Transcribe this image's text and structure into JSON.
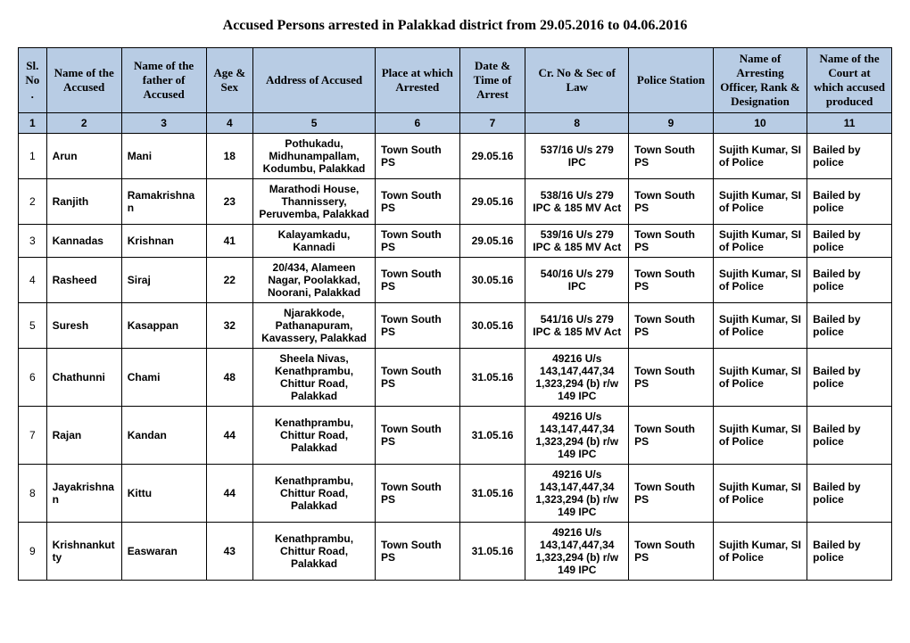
{
  "title": "Accused Persons arrested in   Palakkad  district from   29.05.2016 to 04.06.2016",
  "headers": {
    "sl": "Sl. No.",
    "name": "Name of the Accused",
    "father": "Name of the father of Accused",
    "age": "Age & Sex",
    "addr": "Address of Accused",
    "place": "Place at which Arrested",
    "date": "Date & Time of Arrest",
    "crno": "Cr. No & Sec of Law",
    "station": "Police Station",
    "officer": "Name of Arresting Officer, Rank & Designation",
    "court": "Name of the Court at which accused produced"
  },
  "colnums": [
    "1",
    "2",
    "3",
    "4",
    "5",
    "6",
    "7",
    "8",
    "9",
    "10",
    "11"
  ],
  "rows": [
    {
      "sl": "1",
      "name": "Arun",
      "father": "Mani",
      "age": "18",
      "addr": "Pothukadu, Midhunampallam, Kodumbu, Palakkad",
      "place": "Town South PS",
      "date": "29.05.16",
      "crno": "537/16 U/s 279 IPC",
      "station": "Town South PS",
      "officer": "Sujith Kumar, SI of Police",
      "court": "Bailed by police"
    },
    {
      "sl": "2",
      "name": "Ranjith",
      "father": "Ramakrishnan",
      "age": "23",
      "addr": "Marathodi House, Thannissery, Peruvemba, Palakkad",
      "place": "Town South PS",
      "date": "29.05.16",
      "crno": "538/16 U/s 279 IPC & 185 MV Act",
      "station": "Town South PS",
      "officer": "Sujith Kumar, SI of Police",
      "court": "Bailed by police"
    },
    {
      "sl": "3",
      "name": "Kannadas",
      "father": "Krishnan",
      "age": "41",
      "addr": "Kalayamkadu, Kannadi",
      "place": "Town South PS",
      "date": "29.05.16",
      "crno": "539/16 U/s 279 IPC & 185 MV Act",
      "station": "Town South PS",
      "officer": "Sujith Kumar, SI of Police",
      "court": "Bailed by police"
    },
    {
      "sl": "4",
      "name": "Rasheed",
      "father": "Siraj",
      "age": "22",
      "addr": "20/434, Alameen Nagar, Poolakkad, Noorani, Palakkad",
      "place": "Town South PS",
      "date": "30.05.16",
      "crno": "540/16 U/s 279 IPC",
      "station": "Town South PS",
      "officer": "Sujith Kumar, SI of Police",
      "court": "Bailed by police"
    },
    {
      "sl": "5",
      "name": "Suresh",
      "father": "Kasappan",
      "age": "32",
      "addr": "Njarakkode, Pathanapuram, Kavassery, Palakkad",
      "place": "Town South PS",
      "date": "30.05.16",
      "crno": "541/16 U/s 279 IPC & 185 MV Act",
      "station": "Town South PS",
      "officer": "Sujith Kumar, SI of Police",
      "court": "Bailed by police"
    },
    {
      "sl": "6",
      "name": "Chathunni",
      "father": "Chami",
      "age": "48",
      "addr": "Sheela Nivas, Kenathprambu, Chittur Road, Palakkad",
      "place": "Town South PS",
      "date": "31.05.16",
      "crno": "49216 U/s 143,147,447,34 1,323,294 (b) r/w 149 IPC",
      "station": "Town South PS",
      "officer": "Sujith Kumar, SI of Police",
      "court": "Bailed by police"
    },
    {
      "sl": "7",
      "name": "Rajan",
      "father": "Kandan",
      "age": "44",
      "addr": "Kenathprambu, Chittur Road, Palakkad",
      "place": "Town South PS",
      "date": "31.05.16",
      "crno": "49216 U/s 143,147,447,34 1,323,294 (b) r/w 149 IPC",
      "station": "Town South PS",
      "officer": "Sujith Kumar, SI of Police",
      "court": "Bailed by police"
    },
    {
      "sl": "8",
      "name": "Jayakrishnan",
      "father": "Kittu",
      "age": "44",
      "addr": "Kenathprambu, Chittur Road, Palakkad",
      "place": "Town South PS",
      "date": "31.05.16",
      "crno": "49216 U/s 143,147,447,34 1,323,294 (b) r/w 149 IPC",
      "station": "Town South PS",
      "officer": "Sujith Kumar, SI of Police",
      "court": "Bailed by police"
    },
    {
      "sl": "9",
      "name": "Krishnankutty",
      "father": "Easwaran",
      "age": "43",
      "addr": "Kenathprambu, Chittur Road, Palakkad",
      "place": "Town South PS",
      "date": "31.05.16",
      "crno": "49216 U/s 143,147,447,34 1,323,294 (b) r/w 149 IPC",
      "station": "Town South PS",
      "officer": "Sujith Kumar, SI of Police",
      "court": "Bailed by police"
    }
  ],
  "style": {
    "header_bg": "#b8cce4",
    "border_color": "#000000",
    "page_bg": "#ffffff",
    "title_fontsize": 16,
    "cell_fontsize": 12
  }
}
